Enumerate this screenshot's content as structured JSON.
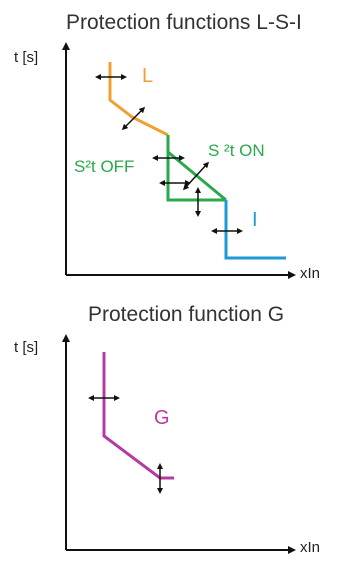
{
  "top_panel": {
    "title": "Protection functions L-S-I",
    "y_axis_label": "t [s]",
    "x_axis_label": "xIn",
    "curve_labels": {
      "L": "L",
      "S_off": "S²t OFF",
      "S_on": "S ²t ON",
      "I": "I"
    }
  },
  "bottom_panel": {
    "title": "Protection function G",
    "y_axis_label": "t [s]",
    "x_axis_label": "xIn",
    "curve_labels": {
      "G": "G"
    }
  },
  "colors": {
    "L": "#f0a030",
    "S": "#2aa84a",
    "I": "#1e9ad6",
    "G": "#b43ca0",
    "axis": "#111111"
  },
  "icons": [
    "bidirectional-arrow-horizontal-icon",
    "bidirectional-arrow-vertical-icon",
    "bidirectional-arrow-diagonal-icon"
  ]
}
